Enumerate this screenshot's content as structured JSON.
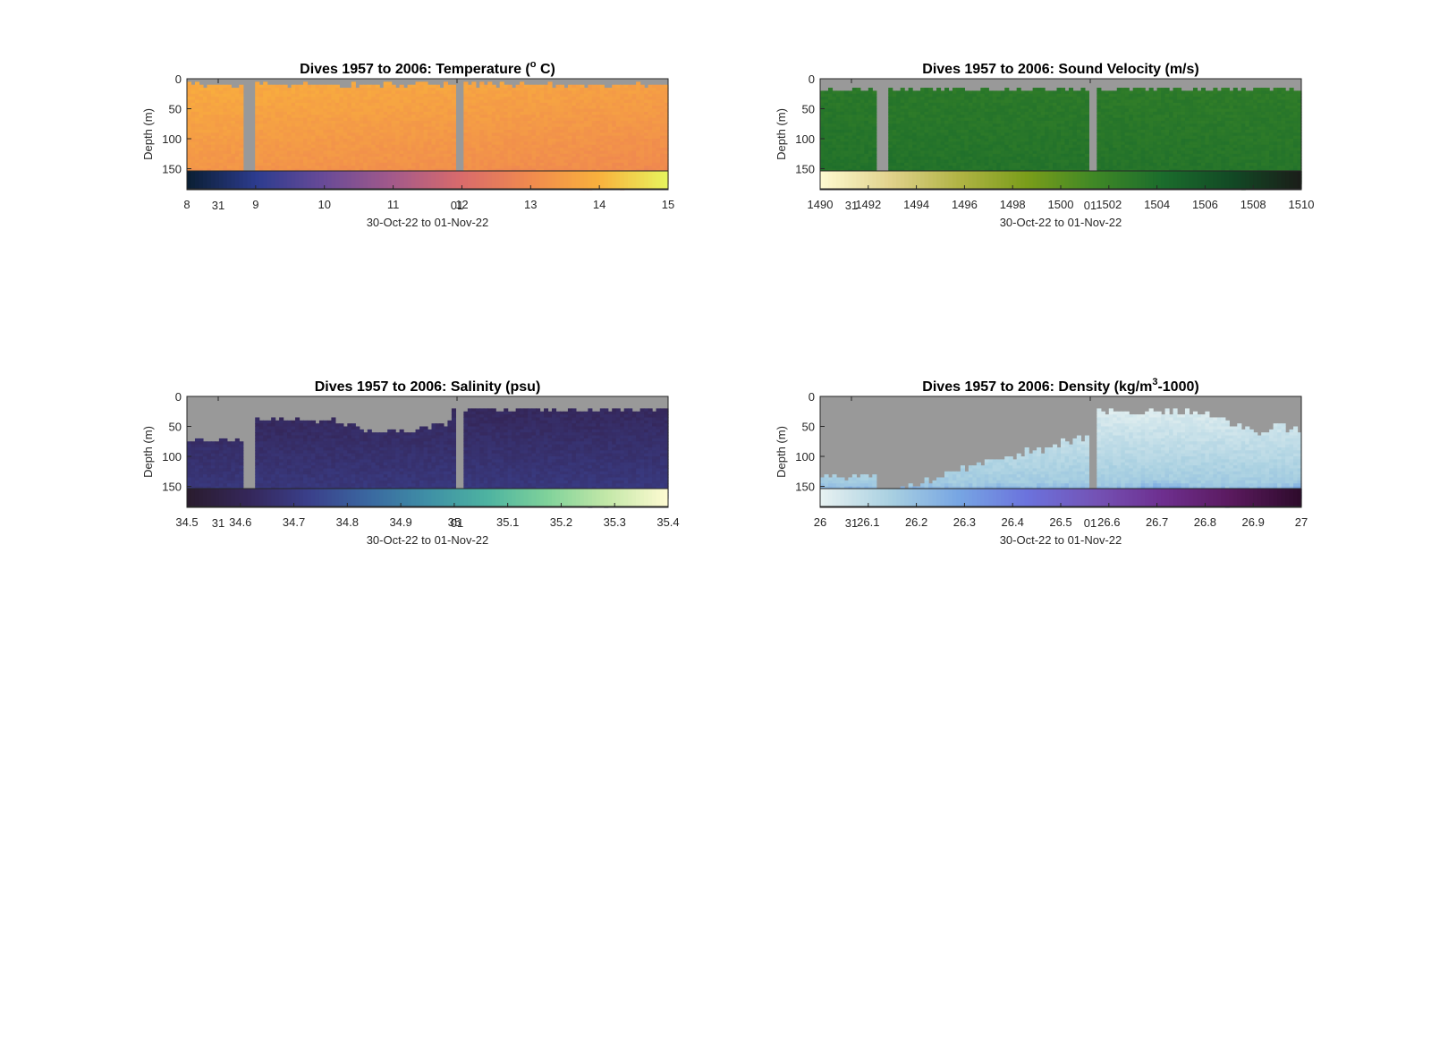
{
  "chart_data": [
    {
      "type": "heatmap",
      "title_main": "Dives 1957 to 2006: Temperature (",
      "title_sup": "o",
      "title_tail": " C)",
      "ylabel": "Depth (m)",
      "xlabel": "30-Oct-22 to 01-Nov-22",
      "x_ticks": [
        "31",
        "01"
      ],
      "y_ticks": [
        0,
        50,
        100,
        150
      ],
      "ylim": [
        0,
        185
      ],
      "colorbar": {
        "ticks": [
          "8",
          "9",
          "10",
          "11",
          "12",
          "13",
          "14",
          "15"
        ],
        "range": [
          8,
          15
        ],
        "colors": [
          "#0b1f35",
          "#2d3c8f",
          "#6a4b97",
          "#a45a8a",
          "#d96b6b",
          "#f08a4e",
          "#f9b03d",
          "#e8f35c"
        ]
      },
      "field": {
        "surface": 13.9,
        "deep": 13.2,
        "trend": -0.3
      },
      "no_data_color": "#999999",
      "gaps": [
        [
          0.118,
          0.14
        ],
        [
          0.56,
          0.578
        ]
      ]
    },
    {
      "type": "heatmap",
      "title_main": "Dives 1957 to 2006: Sound Velocity (m/s)",
      "title_sup": "",
      "title_tail": "",
      "ylabel": "Depth (m)",
      "xlabel": "30-Oct-22 to 01-Nov-22",
      "x_ticks": [
        "31",
        "01"
      ],
      "y_ticks": [
        0,
        50,
        100,
        150
      ],
      "ylim": [
        0,
        185
      ],
      "colorbar": {
        "ticks": [
          "1490",
          "1492",
          "1494",
          "1496",
          "1498",
          "1500",
          "1502",
          "1504",
          "1506",
          "1508",
          "1510"
        ],
        "range": [
          1490,
          1510
        ],
        "colors": [
          "#fdf9cf",
          "#e1d28c",
          "#b1b445",
          "#7a9d1a",
          "#3f8826",
          "#1b6c2c",
          "#124a25",
          "#1a1e19"
        ]
      },
      "field": {
        "surface": 1503.0,
        "deep": 1503.8,
        "trend": -0.3
      },
      "no_data_color": "#999999",
      "gaps": [
        [
          0.118,
          0.14
        ],
        [
          0.56,
          0.578
        ]
      ]
    },
    {
      "type": "heatmap",
      "title_main": "Dives 1957 to 2006: Salinity (psu)",
      "title_sup": "",
      "title_tail": "",
      "ylabel": "Depth (m)",
      "xlabel": "30-Oct-22 to 01-Nov-22",
      "x_ticks": [
        "31",
        "01"
      ],
      "y_ticks": [
        0,
        50,
        100,
        150
      ],
      "ylim": [
        0,
        185
      ],
      "colorbar": {
        "ticks": [
          "34.5",
          "34.6",
          "34.7",
          "34.8",
          "34.9",
          "35",
          "35.1",
          "35.2",
          "35.3",
          "35.4"
        ],
        "range": [
          34.5,
          35.4
        ],
        "colors": [
          "#2a1c2f",
          "#35275a",
          "#3a3f8a",
          "#3a67a0",
          "#3f8fa6",
          "#4db3a1",
          "#7fd29a",
          "#c3e8a8",
          "#fdfad1"
        ]
      },
      "field": {
        "surface": 34.6,
        "deep": 34.7,
        "trend": 0.01
      },
      "no_data_color": "#999999",
      "gaps": [
        [
          0.118,
          0.14
        ],
        [
          0.56,
          0.578
        ]
      ]
    },
    {
      "type": "heatmap",
      "title_main": "Dives 1957 to 2006: Density (kg/m",
      "title_sup": "3",
      "title_tail": "-1000)",
      "ylabel": "Depth (m)",
      "xlabel": "30-Oct-22 to 01-Nov-22",
      "x_ticks": [
        "31",
        "01"
      ],
      "y_ticks": [
        0,
        50,
        100,
        150
      ],
      "ylim": [
        0,
        185
      ],
      "colorbar": {
        "ticks": [
          "26",
          "26.1",
          "26.2",
          "26.3",
          "26.4",
          "26.5",
          "26.6",
          "26.7",
          "26.8",
          "26.9",
          "27"
        ],
        "range": [
          26,
          27
        ],
        "colors": [
          "#e6f1f1",
          "#a9d0e1",
          "#77a6e3",
          "#6b73dd",
          "#7453b6",
          "#6e2f8f",
          "#5a1a5e",
          "#2e0b2c"
        ]
      },
      "field": {
        "surface": 26.0,
        "deep": 26.2,
        "trend": 0.0
      },
      "no_data_color": "#999999",
      "gaps": [
        [
          0.118,
          0.14
        ],
        [
          0.56,
          0.578
        ]
      ]
    }
  ]
}
